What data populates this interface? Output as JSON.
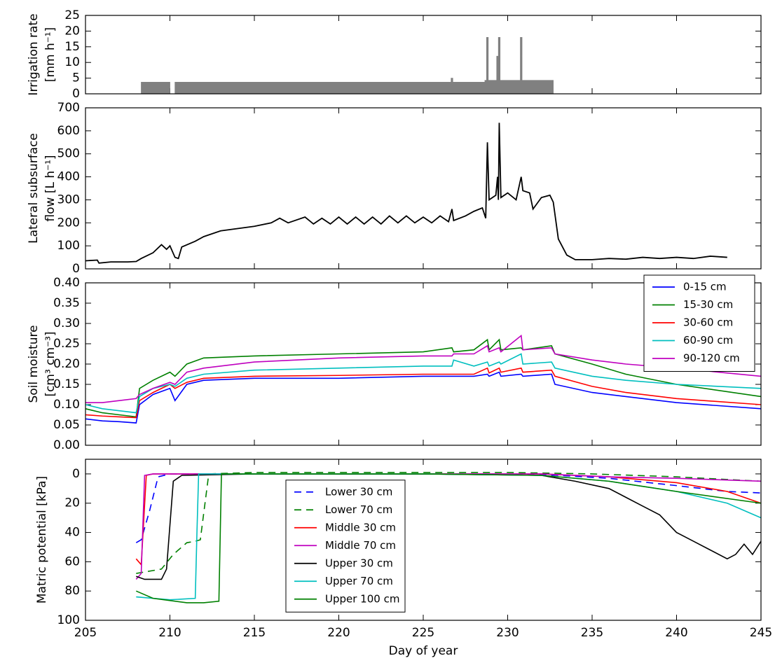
{
  "chart_data": [
    {
      "type": "area",
      "ylabel": [
        "Irrigation rate",
        "[mm h⁻¹]"
      ],
      "color": "#808080",
      "xlim": [
        205,
        245
      ],
      "ylim": [
        0,
        25
      ],
      "yticks": [
        0,
        5,
        10,
        15,
        20,
        25
      ],
      "x": [
        208.3,
        208.3,
        210.0,
        210.0,
        210.3,
        210.3,
        226.65,
        226.65,
        226.75,
        226.75,
        228.65,
        228.65,
        228.75,
        228.75,
        228.85,
        228.85,
        229.35,
        229.35,
        229.45,
        229.45,
        229.55,
        229.55,
        230.75,
        230.75,
        230.85,
        230.85,
        232.7,
        232.7
      ],
      "values": [
        0,
        3.7,
        3.7,
        0,
        0,
        3.7,
        3.7,
        5,
        5,
        3.7,
        3.7,
        4.3,
        4.3,
        18,
        18,
        4.3,
        4.3,
        12,
        12,
        18,
        18,
        4.3,
        4.3,
        18,
        18,
        4.3,
        4.3,
        0
      ]
    },
    {
      "type": "line",
      "ylabel": [
        "Lateral subsurface",
        "flow [L h⁻¹]"
      ],
      "color": "#000000",
      "xlim": [
        205,
        245
      ],
      "ylim": [
        0,
        700
      ],
      "yticks": [
        0,
        100,
        200,
        300,
        400,
        500,
        600,
        700
      ],
      "x": [
        205,
        205.7,
        205.8,
        206.5,
        207.5,
        208,
        208.3,
        209,
        209.5,
        209.8,
        210,
        210.3,
        210.5,
        210.7,
        211.5,
        212,
        213,
        214,
        215,
        216,
        216.5,
        217,
        218,
        218.5,
        219,
        219.5,
        220,
        220.5,
        221,
        221.5,
        222,
        222.5,
        223,
        223.5,
        224,
        224.5,
        225,
        225.5,
        226,
        226.5,
        226.7,
        226.8,
        227.5,
        228,
        228.5,
        228.7,
        228.8,
        228.9,
        229.3,
        229.4,
        229.45,
        229.5,
        229.6,
        230,
        230.5,
        230.8,
        230.9,
        231.3,
        231.5,
        232,
        232.5,
        232.7,
        233,
        233.5,
        234,
        235,
        236,
        237,
        238,
        239,
        240,
        241,
        242,
        243
      ],
      "values": [
        35,
        38,
        25,
        30,
        30,
        32,
        45,
        70,
        105,
        85,
        100,
        50,
        45,
        95,
        120,
        140,
        165,
        175,
        185,
        200,
        220,
        200,
        225,
        195,
        220,
        195,
        225,
        195,
        225,
        195,
        225,
        195,
        230,
        200,
        230,
        200,
        225,
        200,
        230,
        205,
        260,
        210,
        230,
        250,
        265,
        220,
        550,
        300,
        320,
        400,
        300,
        635,
        310,
        330,
        300,
        400,
        340,
        330,
        260,
        310,
        320,
        290,
        130,
        60,
        40,
        40,
        45,
        42,
        50,
        45,
        50,
        45,
        55,
        50
      ]
    },
    {
      "type": "line",
      "ylabel": [
        "Soil moisture",
        "[cm³ cm⁻³]"
      ],
      "xlim": [
        205,
        245
      ],
      "ylim": [
        0,
        0.4
      ],
      "yticks": [
        {
          "value": 0,
          "label": "0.00"
        },
        {
          "value": 0.05,
          "label": "0.05"
        },
        {
          "value": 0.1,
          "label": "0.10"
        },
        {
          "value": 0.15,
          "label": "0.15"
        },
        {
          "value": 0.2,
          "label": "0.20"
        },
        {
          "value": 0.25,
          "label": "0.25"
        },
        {
          "value": 0.3,
          "label": "0.30"
        },
        {
          "value": 0.35,
          "label": "0.35"
        },
        {
          "value": 0.4,
          "label": "0.40"
        }
      ],
      "legend": "upper right",
      "x": [
        205,
        206,
        207,
        208,
        208.2,
        209,
        210,
        210.3,
        211,
        212,
        215,
        220,
        225,
        226.7,
        226.8,
        228,
        228.8,
        228.9,
        229.5,
        229.6,
        230.8,
        230.9,
        232.6,
        232.8,
        235,
        237,
        240,
        245
      ],
      "series": [
        {
          "name": "0-15 cm",
          "color": "#0000ff",
          "values": [
            0.065,
            0.06,
            0.058,
            0.055,
            0.1,
            0.125,
            0.14,
            0.11,
            0.15,
            0.16,
            0.165,
            0.165,
            0.17,
            0.17,
            0.17,
            0.17,
            0.175,
            0.17,
            0.18,
            0.17,
            0.175,
            0.17,
            0.175,
            0.15,
            0.13,
            0.12,
            0.105,
            0.09
          ]
        },
        {
          "name": "15-30 cm",
          "color": "#008000",
          "values": [
            0.09,
            0.08,
            0.075,
            0.07,
            0.14,
            0.16,
            0.18,
            0.17,
            0.2,
            0.215,
            0.22,
            0.225,
            0.23,
            0.24,
            0.23,
            0.235,
            0.26,
            0.235,
            0.26,
            0.235,
            0.24,
            0.235,
            0.245,
            0.225,
            0.2,
            0.175,
            0.15,
            0.12
          ]
        },
        {
          "name": "30-60 cm",
          "color": "#ff0000",
          "values": [
            0.075,
            0.072,
            0.07,
            0.068,
            0.11,
            0.13,
            0.15,
            0.14,
            0.155,
            0.165,
            0.17,
            0.172,
            0.175,
            0.175,
            0.175,
            0.175,
            0.19,
            0.178,
            0.19,
            0.18,
            0.19,
            0.18,
            0.185,
            0.17,
            0.145,
            0.13,
            0.115,
            0.1
          ]
        },
        {
          "name": "60-90 cm",
          "color": "#00bfbf",
          "values": [
            0.1,
            0.09,
            0.085,
            0.08,
            0.12,
            0.14,
            0.15,
            0.145,
            0.165,
            0.175,
            0.185,
            0.19,
            0.195,
            0.195,
            0.21,
            0.195,
            0.205,
            0.195,
            0.205,
            0.2,
            0.225,
            0.2,
            0.205,
            0.19,
            0.17,
            0.16,
            0.15,
            0.14
          ]
        },
        {
          "name": "90-120 cm",
          "color": "#bf00bf",
          "values": [
            0.105,
            0.105,
            0.11,
            0.115,
            0.125,
            0.14,
            0.155,
            0.15,
            0.18,
            0.19,
            0.205,
            0.215,
            0.22,
            0.22,
            0.225,
            0.225,
            0.245,
            0.23,
            0.24,
            0.23,
            0.27,
            0.235,
            0.24,
            0.225,
            0.21,
            0.2,
            0.19,
            0.17
          ]
        }
      ]
    },
    {
      "type": "line",
      "ylabel": [
        "Matric potential [kPa]"
      ],
      "xlabel": "Day of year",
      "xlim": [
        205,
        245
      ],
      "xticks": [
        205,
        210,
        215,
        220,
        225,
        230,
        235,
        240,
        245
      ],
      "ylim": [
        100,
        -10
      ],
      "yticks": [
        0,
        20,
        40,
        60,
        80,
        100
      ],
      "legend": "center left",
      "series": [
        {
          "name": "Lower 30 cm",
          "color": "#0000ff",
          "dashed": true,
          "x": [
            208,
            208.3,
            208.8,
            209.3,
            210,
            215,
            220,
            225,
            230,
            233,
            236,
            240,
            243,
            245
          ],
          "values": [
            47,
            45,
            25,
            2,
            0,
            0,
            0,
            0,
            0,
            1,
            3,
            8,
            12,
            13
          ]
        },
        {
          "name": "Lower 70 cm",
          "color": "#008000",
          "dashed": true,
          "x": [
            208,
            208.5,
            209.5,
            210.2,
            211,
            211.5,
            211.8,
            212.3,
            215,
            225,
            230,
            235,
            240,
            245
          ],
          "values": [
            68,
            67,
            65,
            55,
            47,
            46,
            45,
            0,
            -1,
            -1,
            -1,
            0,
            2,
            5
          ]
        },
        {
          "name": "Middle 30 cm",
          "color": "#ff0000",
          "x": [
            208,
            208.3,
            208.6,
            209,
            215,
            225,
            232,
            236,
            240,
            243,
            245
          ],
          "values": [
            58,
            62,
            1,
            0,
            0,
            0,
            0,
            2,
            6,
            12,
            20
          ]
        },
        {
          "name": "Middle 70 cm",
          "color": "#bf00bf",
          "x": [
            208,
            208.3,
            208.5,
            209,
            215,
            225,
            232,
            236,
            240,
            245
          ],
          "values": [
            72,
            68,
            1,
            0,
            0,
            0,
            0,
            2,
            3,
            5
          ]
        },
        {
          "name": "Upper 30 cm",
          "color": "#000000",
          "x": [
            208,
            208.5,
            209.5,
            209.8,
            210.2,
            210.7,
            215,
            225,
            232,
            234,
            236,
            237,
            238,
            239,
            240,
            241,
            242,
            243,
            243.5,
            244,
            244.5,
            245
          ],
          "values": [
            70,
            72,
            72,
            65,
            5,
            1,
            0,
            0,
            1,
            5,
            10,
            16,
            22,
            28,
            40,
            46,
            52,
            58,
            55,
            48,
            55,
            46
          ]
        },
        {
          "name": "Upper 70 cm",
          "color": "#00bfbf",
          "x": [
            208,
            210,
            211.5,
            211.6,
            211.7,
            215,
            225,
            232,
            236,
            240,
            243,
            245
          ],
          "values": [
            84,
            86,
            85,
            40,
            0,
            0,
            0,
            1,
            5,
            12,
            20,
            30
          ]
        },
        {
          "name": "Upper 100 cm",
          "color": "#008000",
          "x": [
            208,
            209,
            211,
            212,
            212.9,
            213.05,
            215,
            225,
            232,
            236,
            240,
            245
          ],
          "values": [
            80,
            85,
            88,
            88,
            87,
            0,
            0,
            0,
            1,
            5,
            12,
            20
          ]
        }
      ]
    }
  ]
}
